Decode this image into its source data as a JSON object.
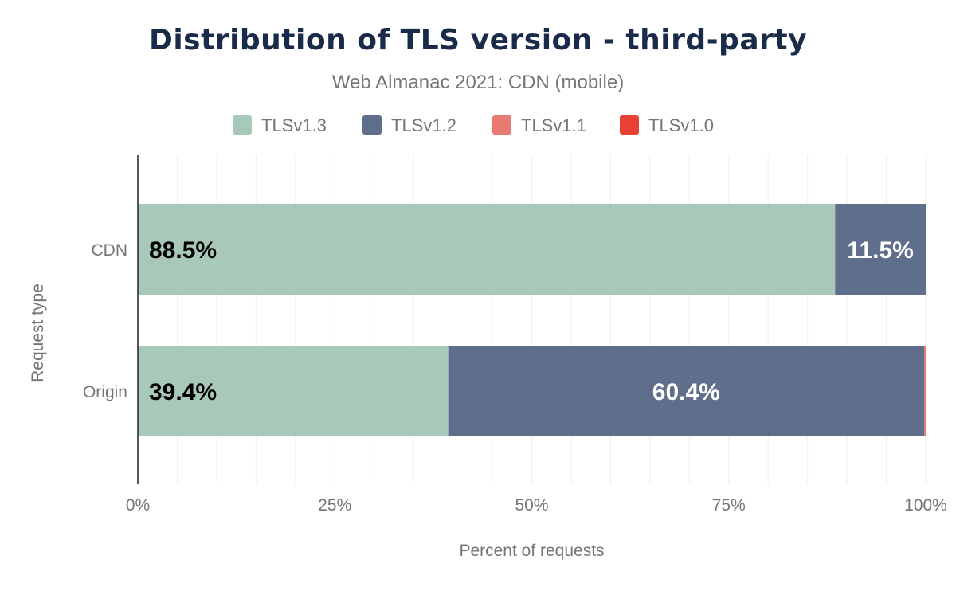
{
  "chart_data": {
    "type": "bar",
    "orientation": "horizontal",
    "stacked": true,
    "title": "Distribution of TLS version - third-party",
    "subtitle": "Web Almanac 2021: CDN (mobile)",
    "xlabel": "Percent of requests",
    "ylabel": "Request type",
    "xlim": [
      0,
      100
    ],
    "x_ticks": [
      "0%",
      "25%",
      "50%",
      "75%",
      "100%"
    ],
    "grid": true,
    "legend_position": "top",
    "categories": [
      "CDN",
      "Origin"
    ],
    "series": [
      {
        "name": "TLSv1.3",
        "color": "#a8c9ba",
        "values": [
          88.5,
          39.4
        ],
        "labels": [
          "88.5%",
          "39.4%"
        ],
        "label_color": "#000000"
      },
      {
        "name": "TLSv1.2",
        "color": "#5f6f8b",
        "values": [
          11.5,
          60.4
        ],
        "labels": [
          "11.5%",
          "60.4%"
        ],
        "label_color": "#ffffff"
      },
      {
        "name": "TLSv1.1",
        "color": "#e97a72",
        "values": [
          0,
          0.2
        ],
        "labels": [
          "",
          ""
        ]
      },
      {
        "name": "TLSv1.0",
        "color": "#e84134",
        "values": [
          0,
          0
        ],
        "labels": [
          "",
          ""
        ]
      }
    ]
  }
}
